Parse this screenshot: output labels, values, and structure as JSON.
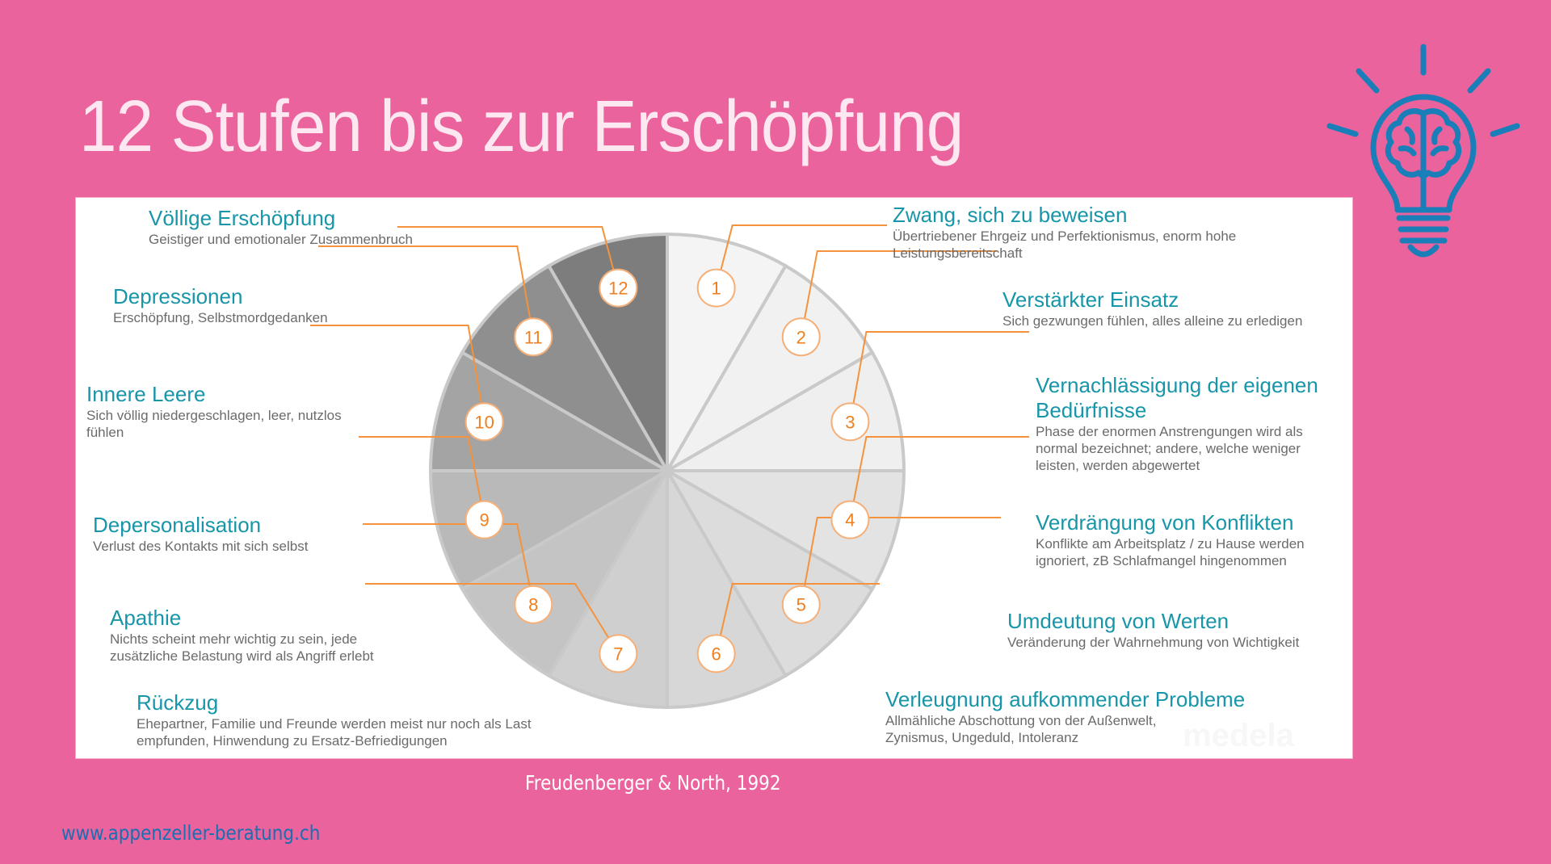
{
  "slide": {
    "title": "12 Stufen bis zur Erschöpfung",
    "citation": "Freudenberger & North, 1992",
    "website": "www.appenzeller-beratung.ch",
    "icon": "lightbulb-brain-icon",
    "colors": {
      "background": "#ea639c",
      "title": "#fde7f0",
      "icon": "#1a7fb8",
      "heading": "#1796a9",
      "description": "#6b6b6b",
      "connector": "#f5923e",
      "website": "#1a6fb3"
    },
    "watermark": "medela"
  },
  "chart_data": {
    "type": "pie",
    "title": "12 Stufen bis zur Erschöpfung",
    "source": "Freudenberger & North, 1992",
    "categories": [
      "1",
      "2",
      "3",
      "4",
      "5",
      "6",
      "7",
      "8",
      "9",
      "10",
      "11",
      "12"
    ],
    "values": [
      1,
      1,
      1,
      1,
      1,
      1,
      1,
      1,
      1,
      1,
      1,
      1
    ],
    "slice_colors": [
      "#f4f4f4",
      "#f1f1f1",
      "#efefef",
      "#e3e3e3",
      "#dcdcdc",
      "#d7d7d7",
      "#cfcfcf",
      "#c4c4c4",
      "#b9b9b9",
      "#a4a4a4",
      "#8f8f8f",
      "#7d7d7d"
    ],
    "stages": [
      {
        "number": "1",
        "title": "Zwang, sich zu beweisen",
        "description": "Übertriebener Ehrgeiz und Perfektionismus, enorm hohe Leistungsbereitschaft"
      },
      {
        "number": "2",
        "title": "Verstärkter Einsatz",
        "description": "Sich gezwungen fühlen, alles alleine zu erledigen"
      },
      {
        "number": "3",
        "title": "Vernachlässigung der eigenen Bedürfnisse",
        "description": "Phase der enormen Anstrengungen wird als normal bezeichnet; andere, welche weniger leisten, werden abgewertet"
      },
      {
        "number": "4",
        "title": "Verdrängung von Konflikten",
        "description": "Konflikte am Arbeitsplatz / zu Hause werden ignoriert, zB Schlafmangel hingenommen"
      },
      {
        "number": "5",
        "title": "Umdeutung von Werten",
        "description": "Veränderung der Wahrnehmung von Wichtigkeit"
      },
      {
        "number": "6",
        "title": "Verleugnung aufkommender Probleme",
        "description": "Allmähliche Abschottung von der Außenwelt, Zynismus, Ungeduld, Intoleranz"
      },
      {
        "number": "7",
        "title": "Rückzug",
        "description": "Ehepartner, Familie und Freunde werden meist nur noch als Last empfunden, Hinwendung zu Ersatz-Befriedigungen"
      },
      {
        "number": "8",
        "title": "Apathie",
        "description": "Nichts scheint mehr wichtig zu sein, jede zusätzliche Belastung wird als Angriff erlebt"
      },
      {
        "number": "9",
        "title": "Depersonalisation",
        "description": "Verlust des Kontakts mit sich selbst"
      },
      {
        "number": "10",
        "title": "Innere Leere",
        "description": "Sich völlig niedergeschlagen, leer, nutzlos fühlen"
      },
      {
        "number": "11",
        "title": "Depressionen",
        "description": "Erschöpfung, Selbstmordgedanken"
      },
      {
        "number": "12",
        "title": "Völlige Erschöpfung",
        "description": "Geistiger und emotionaler Zusammenbruch"
      }
    ]
  }
}
